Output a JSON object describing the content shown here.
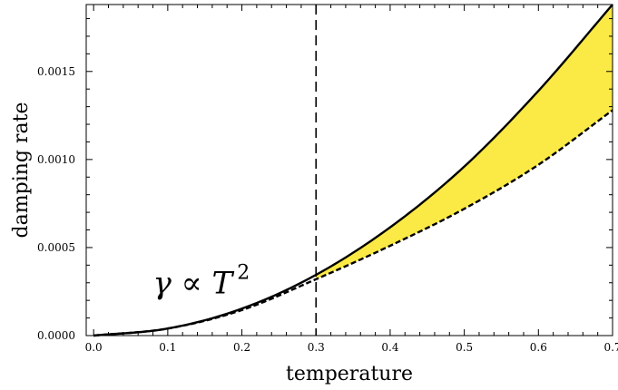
{
  "chart_data": {
    "type": "line",
    "xlabel": "temperature",
    "ylabel": "damping rate",
    "xlim": [
      -0.01,
      0.7
    ],
    "ylim": [
      0.0,
      0.00188
    ],
    "x_ticks": [
      0.0,
      0.1,
      0.2,
      0.3,
      0.4,
      0.5,
      0.6,
      0.7
    ],
    "x_tick_labels": [
      "0.0",
      "0.1",
      "0.2",
      "0.3",
      "0.4",
      "0.5",
      "0.6",
      "0.7"
    ],
    "y_ticks": [
      0.0,
      0.0005,
      0.001,
      0.0015
    ],
    "y_tick_labels": [
      "0.0000",
      "0.0005",
      "0.0010",
      "0.0015"
    ],
    "grid": false,
    "legend": "none",
    "series": [
      {
        "style": "solid",
        "x": [
          0.0,
          0.1,
          0.2,
          0.3,
          0.4,
          0.5,
          0.6,
          0.7
        ],
        "y": [
          0.0,
          4e-05,
          0.000153,
          0.000345,
          0.000615,
          0.00096,
          0.00139,
          0.00188
        ]
      },
      {
        "style": "dashed",
        "x": [
          0.0,
          0.1,
          0.2,
          0.3,
          0.4,
          0.5,
          0.6,
          0.7
        ],
        "y": [
          0.0,
          4e-05,
          0.000145,
          0.00032,
          0.00051,
          0.00072,
          0.00097,
          0.00128
        ]
      }
    ],
    "shaded_region": {
      "between": [
        "solid",
        "dashed"
      ],
      "x_from": 0.3,
      "x_to": 0.7,
      "color": "#FBE945"
    },
    "reference_line": {
      "orientation": "vertical",
      "x": 0.3,
      "style": "dashed"
    },
    "annotation": {
      "text_symbol": "γ ∝ T",
      "superscript": "2",
      "x": 0.08,
      "y": 0.00024
    }
  }
}
